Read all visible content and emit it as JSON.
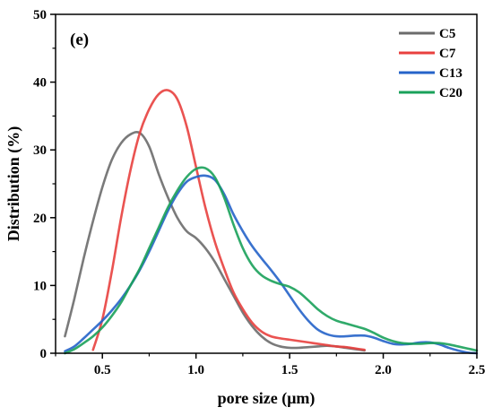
{
  "chart_data": {
    "type": "line",
    "panel_label": "(e)",
    "xlabel": "pore size (μm)",
    "ylabel": "Distribution (%)",
    "xlim": [
      0.25,
      2.5
    ],
    "ylim": [
      0,
      50
    ],
    "xticks": [
      0.5,
      1.0,
      1.5,
      2.0,
      2.5
    ],
    "xtick_labels": [
      "0.5",
      "1.0",
      "1.5",
      "2.0",
      "2.5"
    ],
    "yticks": [
      0,
      10,
      20,
      30,
      40,
      50
    ],
    "ytick_labels": [
      "0",
      "10",
      "20",
      "30",
      "40",
      "50"
    ],
    "grid": false,
    "legend_position": "top-right",
    "series": [
      {
        "name": "C5",
        "color": "#6b6b6b",
        "x": [
          0.3,
          0.35,
          0.4,
          0.45,
          0.5,
          0.55,
          0.6,
          0.65,
          0.7,
          0.75,
          0.8,
          0.85,
          0.9,
          0.95,
          1.0,
          1.05,
          1.1,
          1.15,
          1.2,
          1.25,
          1.3,
          1.35,
          1.4,
          1.45,
          1.5,
          1.55,
          1.6,
          1.65,
          1.7,
          1.75,
          1.8,
          1.85,
          1.9
        ],
        "y": [
          2.5,
          8.0,
          14.0,
          19.5,
          24.5,
          28.5,
          31.0,
          32.3,
          32.5,
          30.5,
          26.5,
          23.0,
          20.0,
          18.0,
          17.0,
          15.5,
          13.5,
          11.0,
          8.5,
          6.0,
          4.0,
          2.5,
          1.5,
          1.0,
          0.8,
          0.8,
          0.9,
          1.0,
          1.1,
          1.0,
          0.8,
          0.6,
          0.4
        ]
      },
      {
        "name": "C7",
        "color": "#e8403e",
        "x": [
          0.45,
          0.5,
          0.55,
          0.6,
          0.65,
          0.7,
          0.75,
          0.8,
          0.85,
          0.9,
          0.95,
          1.0,
          1.05,
          1.1,
          1.15,
          1.2,
          1.25,
          1.3,
          1.35,
          1.4,
          1.45,
          1.5,
          1.55,
          1.6,
          1.65,
          1.7,
          1.75,
          1.8,
          1.85,
          1.9
        ],
        "y": [
          0.5,
          5.0,
          12.0,
          20.0,
          27.0,
          32.5,
          36.0,
          38.2,
          38.8,
          37.5,
          33.5,
          27.5,
          21.5,
          16.5,
          12.5,
          9.0,
          6.5,
          4.5,
          3.2,
          2.5,
          2.2,
          2.0,
          1.8,
          1.6,
          1.4,
          1.2,
          1.0,
          0.9,
          0.7,
          0.5
        ]
      },
      {
        "name": "C13",
        "color": "#2563c9",
        "x": [
          0.3,
          0.35,
          0.4,
          0.45,
          0.5,
          0.55,
          0.6,
          0.65,
          0.7,
          0.75,
          0.8,
          0.85,
          0.9,
          0.95,
          1.0,
          1.05,
          1.1,
          1.15,
          1.2,
          1.25,
          1.3,
          1.35,
          1.4,
          1.45,
          1.5,
          1.55,
          1.6,
          1.65,
          1.7,
          1.75,
          1.8,
          1.85,
          1.9,
          1.95,
          2.0,
          2.05,
          2.1,
          2.15,
          2.2,
          2.25,
          2.3,
          2.35,
          2.4,
          2.45,
          2.5
        ],
        "y": [
          0.3,
          1.0,
          2.2,
          3.5,
          4.8,
          6.3,
          8.0,
          10.0,
          12.3,
          15.0,
          18.0,
          21.0,
          23.5,
          25.3,
          26.0,
          26.2,
          25.6,
          23.5,
          20.5,
          18.0,
          15.8,
          14.0,
          12.3,
          10.5,
          8.5,
          6.5,
          4.8,
          3.5,
          2.8,
          2.5,
          2.5,
          2.6,
          2.6,
          2.3,
          1.8,
          1.4,
          1.3,
          1.4,
          1.6,
          1.6,
          1.3,
          0.8,
          0.4,
          0.1,
          0.0
        ]
      },
      {
        "name": "C20",
        "color": "#1aa15a",
        "x": [
          0.3,
          0.35,
          0.4,
          0.45,
          0.5,
          0.55,
          0.6,
          0.65,
          0.7,
          0.75,
          0.8,
          0.85,
          0.9,
          0.95,
          1.0,
          1.05,
          1.1,
          1.15,
          1.2,
          1.25,
          1.3,
          1.35,
          1.4,
          1.45,
          1.5,
          1.55,
          1.6,
          1.65,
          1.7,
          1.75,
          1.8,
          1.85,
          1.9,
          1.95,
          2.0,
          2.05,
          2.1,
          2.15,
          2.2,
          2.25,
          2.3,
          2.35,
          2.4,
          2.45,
          2.5
        ],
        "y": [
          0.0,
          0.6,
          1.5,
          2.5,
          3.8,
          5.5,
          7.5,
          10.0,
          12.5,
          15.5,
          18.5,
          21.5,
          24.0,
          26.0,
          27.2,
          27.3,
          26.0,
          23.0,
          19.0,
          15.5,
          13.0,
          11.5,
          10.7,
          10.2,
          9.8,
          9.0,
          7.8,
          6.5,
          5.5,
          4.8,
          4.4,
          4.0,
          3.6,
          3.0,
          2.3,
          1.8,
          1.5,
          1.4,
          1.4,
          1.5,
          1.5,
          1.3,
          1.0,
          0.7,
          0.4
        ]
      }
    ]
  }
}
